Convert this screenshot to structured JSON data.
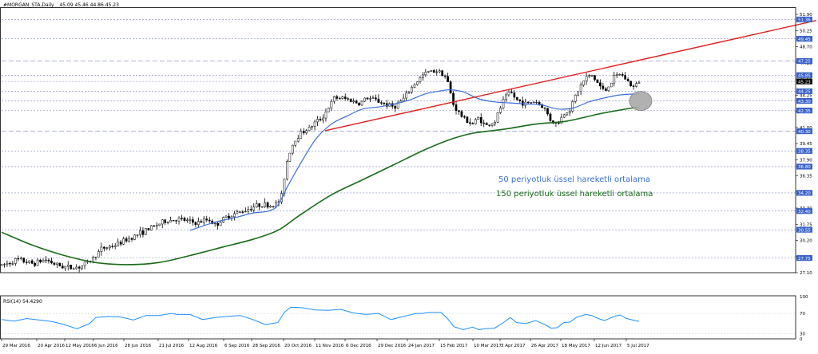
{
  "header": {
    "symbol": "#MORGAN_STA,Daily",
    "ohlc": "45.09 45.46 44.86 45.23"
  },
  "annotations": {
    "ema50": "50 periyotluk üssel hareketli ortalama",
    "ema150": "150 periyotluk üssel hareketli ortalama"
  },
  "colors": {
    "background": "#ffffff",
    "candle": "#000000",
    "ema50": "#3b6fd8",
    "ema150": "#1a6b1a",
    "trend": "#e02020",
    "rsi": "#1e90ff",
    "grid": "#7a8cc0",
    "ellipse": "#a8a8a8",
    "priceTagBg": "#3a62c8",
    "currentTagBg": "#000000"
  },
  "chart_data": [
    {
      "type": "candlestick",
      "title": "#MORGAN_STA,Daily",
      "ylim": [
        26.3,
        52.5
      ],
      "y_ticks": [
        "51.90",
        "50.25",
        "48.70",
        "47.25",
        "45.65",
        "44.25",
        "42.60",
        "41.00",
        "39.45",
        "37.90",
        "36.35",
        "34.85",
        "33.30",
        "31.75",
        "30.20",
        "28.65",
        "27.10"
      ],
      "price_tags": [
        {
          "label": "51.36",
          "value": 51.36
        },
        {
          "label": "49.45",
          "value": 49.45
        },
        {
          "label": "47.25",
          "value": 47.25
        },
        {
          "label": "45.85",
          "value": 45.85
        },
        {
          "label": "45.23",
          "value": 45.23,
          "current": true
        },
        {
          "label": "44.25",
          "value": 44.25
        },
        {
          "label": "43.30",
          "value": 43.3
        },
        {
          "label": "42.35",
          "value": 42.35
        },
        {
          "label": "40.30",
          "value": 40.3
        },
        {
          "label": "38.35",
          "value": 38.35
        },
        {
          "label": "36.80",
          "value": 36.8
        },
        {
          "label": "34.20",
          "value": 34.2
        },
        {
          "label": "32.40",
          "value": 32.4
        },
        {
          "label": "30.55",
          "value": 30.55
        },
        {
          "label": "27.75",
          "value": 27.75
        }
      ],
      "x_ticks": [
        "29 Mar 2016",
        "20 Apr 2016",
        "12 May 2016",
        "6 Jun 2016",
        "28 Jun 2016",
        "21 Jul 2016",
        "12 Aug 2016",
        "6 Sep 2016",
        "28 Sep 2016",
        "20 Oct 2016",
        "11 Nov 2016",
        "6 Dec 2016",
        "29 Dec 2016",
        "24 Jan 2017",
        "15 Feb 2017",
        "10 Mar 2017",
        "3 Apr 2017",
        "26 Apr 2017",
        "18 May 2017",
        "12 Jun 2017",
        "5 Jul 2017"
      ],
      "price_path": [
        [
          0,
          27.0
        ],
        [
          5,
          27.6
        ],
        [
          10,
          27.2
        ],
        [
          14,
          27.6
        ],
        [
          18,
          27.0
        ],
        [
          22,
          26.8
        ],
        [
          25,
          26.9
        ],
        [
          28,
          27.4
        ],
        [
          32,
          28.7
        ],
        [
          36,
          29.0
        ],
        [
          40,
          29.6
        ],
        [
          44,
          30.2
        ],
        [
          48,
          30.8
        ],
        [
          52,
          31.4
        ],
        [
          56,
          31.6
        ],
        [
          58,
          31.5
        ],
        [
          62,
          31.2
        ],
        [
          66,
          31.6
        ],
        [
          68,
          31.0
        ],
        [
          72,
          31.9
        ],
        [
          76,
          32.3
        ],
        [
          80,
          32.8
        ],
        [
          83,
          33.1
        ],
        [
          85,
          32.9
        ],
        [
          87,
          33.0
        ],
        [
          89,
          33.6
        ],
        [
          90,
          35.7
        ],
        [
          91,
          37.5
        ],
        [
          92,
          38.5
        ],
        [
          93,
          39.2
        ],
        [
          95,
          40.1
        ],
        [
          98,
          40.6
        ],
        [
          100,
          41.2
        ],
        [
          102,
          41.6
        ],
        [
          104,
          42.6
        ],
        [
          106,
          43.6
        ],
        [
          108,
          43.6
        ],
        [
          111,
          43.4
        ],
        [
          114,
          43.0
        ],
        [
          116,
          43.6
        ],
        [
          119,
          43.4
        ],
        [
          122,
          43.0
        ],
        [
          125,
          42.7
        ],
        [
          128,
          43.5
        ],
        [
          131,
          44.8
        ],
        [
          134,
          45.8
        ],
        [
          136,
          46.2
        ],
        [
          139,
          46.3
        ],
        [
          141,
          45.9
        ],
        [
          142,
          45.2
        ],
        [
          144,
          42.8
        ],
        [
          147,
          41.6
        ],
        [
          150,
          41.0
        ],
        [
          152,
          41.7
        ],
        [
          154,
          40.8
        ],
        [
          157,
          41.2
        ],
        [
          160,
          43.5
        ],
        [
          162,
          44.2
        ],
        [
          164,
          43.4
        ],
        [
          167,
          43.0
        ],
        [
          170,
          43.3
        ],
        [
          173,
          42.5
        ],
        [
          175,
          41.3
        ],
        [
          177,
          41.0
        ],
        [
          179,
          42.0
        ],
        [
          181,
          42.5
        ],
        [
          183,
          44.0
        ],
        [
          186,
          45.6
        ],
        [
          188,
          45.8
        ],
        [
          190,
          45.0
        ],
        [
          192,
          44.2
        ],
        [
          195,
          45.6
        ],
        [
          197,
          46.0
        ],
        [
          199,
          45.4
        ],
        [
          201,
          44.6
        ],
        [
          203,
          45.23
        ]
      ],
      "series": [
        {
          "name": "50 periyotluk üssel hareketli ortalama",
          "type": "line",
          "values": [
            [
              60,
              30.5
            ],
            [
              68,
              31.3
            ],
            [
              75,
              31.8
            ],
            [
              80,
              32.2
            ],
            [
              85,
              32.4
            ],
            [
              88,
              33.0
            ],
            [
              91,
              34.8
            ],
            [
              95,
              37.0
            ],
            [
              100,
              39.5
            ],
            [
              105,
              41.0
            ],
            [
              110,
              41.8
            ],
            [
              115,
              42.5
            ],
            [
              120,
              42.7
            ],
            [
              125,
              43.0
            ],
            [
              130,
              43.4
            ],
            [
              135,
              44.0
            ],
            [
              140,
              44.3
            ],
            [
              143,
              44.4
            ],
            [
              147,
              44.2
            ],
            [
              152,
              43.5
            ],
            [
              157,
              43.2
            ],
            [
              162,
              43.1
            ],
            [
              167,
              43.0
            ],
            [
              172,
              42.9
            ],
            [
              177,
              42.5
            ],
            [
              182,
              42.6
            ],
            [
              187,
              43.2
            ],
            [
              192,
              43.6
            ],
            [
              197,
              43.9
            ],
            [
              203,
              44.0
            ]
          ]
        },
        {
          "name": "150 periyotluk üssel hareketli ortalama",
          "type": "line",
          "values": [
            [
              0,
              30.3
            ],
            [
              10,
              29.0
            ],
            [
              20,
              28.0
            ],
            [
              30,
              27.3
            ],
            [
              40,
              27.1
            ],
            [
              50,
              27.3
            ],
            [
              60,
              28.0
            ],
            [
              70,
              28.8
            ],
            [
              80,
              29.6
            ],
            [
              88,
              30.5
            ],
            [
              95,
              32.0
            ],
            [
              105,
              34.0
            ],
            [
              115,
              35.5
            ],
            [
              125,
              37.0
            ],
            [
              135,
              38.5
            ],
            [
              143,
              39.5
            ],
            [
              150,
              40.1
            ],
            [
              160,
              40.5
            ],
            [
              170,
              41.0
            ],
            [
              180,
              41.3
            ],
            [
              190,
              42.0
            ],
            [
              197,
              42.4
            ],
            [
              203,
              42.7
            ]
          ]
        },
        {
          "name": "",
          "type": "trendline",
          "values": [
            [
              103,
              40.35
            ],
            [
              250,
              50.6
            ]
          ]
        }
      ],
      "highlight_ellipse": {
        "x": 203,
        "y": 43.3
      }
    },
    {
      "type": "line",
      "title": "RSI(14) 54.4290",
      "ylim": [
        20,
        100
      ],
      "y_ticks": [
        "100",
        "70",
        "30",
        "0"
      ],
      "series": [
        {
          "name": "RSI(14)",
          "values": [
            [
              0,
              58
            ],
            [
              4,
              55
            ],
            [
              8,
              60
            ],
            [
              12,
              57
            ],
            [
              16,
              54
            ],
            [
              20,
              48
            ],
            [
              24,
              40
            ],
            [
              28,
              50
            ],
            [
              30,
              62
            ],
            [
              34,
              64
            ],
            [
              38,
              63
            ],
            [
              42,
              57
            ],
            [
              46,
              66
            ],
            [
              50,
              66
            ],
            [
              54,
              70
            ],
            [
              56,
              68
            ],
            [
              60,
              68
            ],
            [
              64,
              58
            ],
            [
              68,
              62
            ],
            [
              72,
              64
            ],
            [
              76,
              66
            ],
            [
              80,
              58
            ],
            [
              84,
              48
            ],
            [
              88,
              52
            ],
            [
              90,
              72
            ],
            [
              92,
              82
            ],
            [
              94,
              82
            ],
            [
              96,
              81
            ],
            [
              100,
              77
            ],
            [
              104,
              76
            ],
            [
              108,
              78
            ],
            [
              112,
              71
            ],
            [
              116,
              68
            ],
            [
              120,
              70
            ],
            [
              124,
              58
            ],
            [
              128,
              64
            ],
            [
              132,
              70
            ],
            [
              134,
              70
            ],
            [
              136,
              72
            ],
            [
              140,
              72
            ],
            [
              142,
              60
            ],
            [
              144,
              44
            ],
            [
              147,
              38
            ],
            [
              150,
              43
            ],
            [
              152,
              38
            ],
            [
              154,
              40
            ],
            [
              157,
              41
            ],
            [
              160,
              53
            ],
            [
              162,
              62
            ],
            [
              164,
              52
            ],
            [
              167,
              50
            ],
            [
              170,
              56
            ],
            [
              173,
              48
            ],
            [
              175,
              41
            ],
            [
              177,
              42
            ],
            [
              179,
              52
            ],
            [
              181,
              53
            ],
            [
              183,
              62
            ],
            [
              186,
              68
            ],
            [
              188,
              66
            ],
            [
              190,
              60
            ],
            [
              192,
              56
            ],
            [
              195,
              64
            ],
            [
              197,
              67
            ],
            [
              199,
              60
            ],
            [
              201,
              57
            ],
            [
              203,
              54.4
            ]
          ]
        }
      ]
    }
  ]
}
